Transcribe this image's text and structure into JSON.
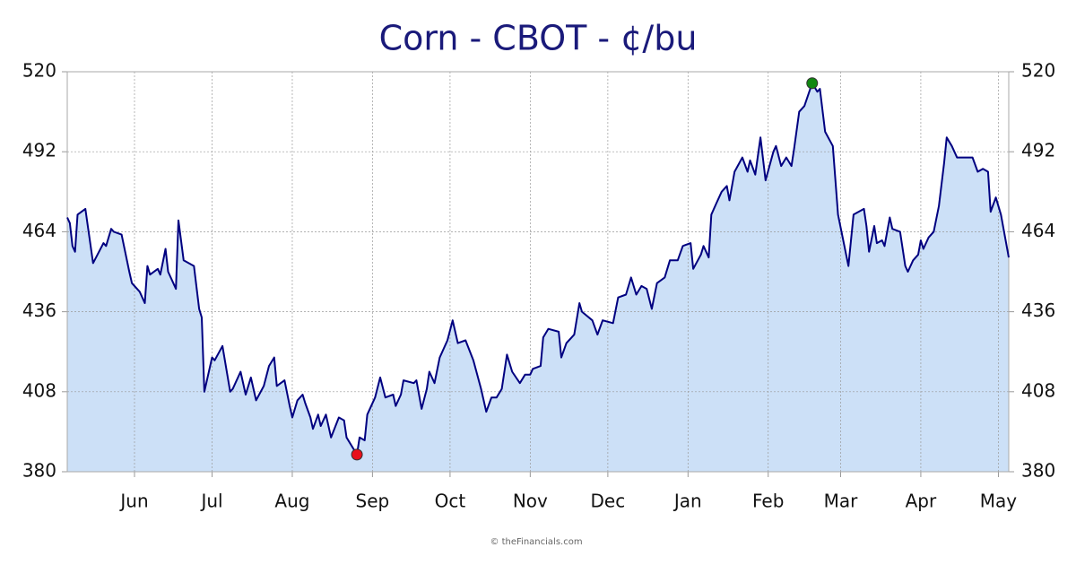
{
  "chart_data": {
    "type": "area",
    "title": "Corn - CBOT - ¢/bu",
    "footer": "© theFinancials.com",
    "x": [
      0,
      1,
      2,
      3,
      4,
      7,
      10,
      14,
      15,
      17,
      18,
      21,
      24,
      25,
      28,
      30,
      31,
      32,
      35,
      36,
      38,
      39,
      42,
      43,
      45,
      49,
      51,
      52,
      53,
      56,
      57,
      60,
      63,
      64,
      67,
      69,
      71,
      73,
      76,
      78,
      80,
      81,
      84,
      86,
      87,
      89,
      91,
      92,
      94,
      95,
      97,
      98,
      100,
      102,
      105,
      107,
      108,
      112,
      113,
      115,
      116,
      119,
      121,
      123,
      126,
      127,
      129,
      130,
      134,
      135,
      137,
      139,
      140,
      142,
      144,
      147,
      149,
      151,
      154,
      157,
      160,
      162,
      164,
      166,
      168,
      170,
      172,
      175,
      177,
      179,
      180,
      183,
      184,
      186,
      190,
      191,
      193,
      196,
      198,
      199,
      203,
      205,
      207,
      211,
      213,
      216,
      218,
      220,
      222,
      224,
      226,
      228,
      231,
      233,
      236,
      238,
      241,
      242,
      245,
      246,
      248,
      249,
      251,
      253,
      255,
      256,
      258,
      261,
      263,
      264,
      266,
      268,
      270,
      273,
      274,
      276,
      278,
      280,
      281,
      283,
      285,
      288,
      290,
      291,
      293,
      296,
      298,
      302,
      304,
      308,
      309,
      310,
      312,
      313,
      315,
      316,
      318,
      319,
      322,
      324,
      325,
      327,
      329,
      330,
      331,
      333,
      335,
      337,
      339,
      340,
      342,
      344,
      346,
      350,
      352,
      354,
      356,
      357,
      359,
      361,
      364
    ],
    "values": [
      469,
      467,
      459,
      457,
      470,
      472,
      453,
      460,
      459,
      465,
      464,
      463,
      450,
      446,
      443,
      439,
      452,
      449,
      451,
      449,
      458,
      450,
      444,
      468,
      454,
      452,
      437,
      434,
      408,
      420,
      419,
      424,
      408,
      409,
      415,
      407,
      413,
      405,
      410,
      417,
      420,
      410,
      412,
      403,
      399,
      405,
      407,
      404,
      399,
      395,
      400,
      396,
      400,
      392,
      399,
      398,
      392,
      386,
      392,
      391,
      400,
      406,
      413,
      406,
      407,
      403,
      407,
      412,
      411,
      412,
      402,
      409,
      415,
      411,
      420,
      426,
      433,
      425,
      426,
      419,
      409,
      401,
      406,
      406,
      409,
      421,
      415,
      411,
      414,
      414,
      416,
      417,
      427,
      430,
      429,
      420,
      425,
      428,
      439,
      436,
      433,
      428,
      433,
      432,
      441,
      442,
      448,
      442,
      445,
      444,
      437,
      446,
      448,
      454,
      454,
      459,
      460,
      451,
      456,
      459,
      455,
      470,
      474,
      478,
      480,
      475,
      485,
      490,
      485,
      489,
      484,
      497,
      482,
      492,
      494,
      487,
      490,
      487,
      493,
      506,
      508,
      516,
      513,
      514,
      499,
      494,
      470,
      452,
      470,
      472,
      466,
      457,
      466,
      460,
      461,
      459,
      469,
      465,
      464,
      452,
      450,
      454,
      456,
      461,
      458,
      462,
      464,
      473,
      488,
      497,
      494,
      490,
      490,
      490,
      485,
      486,
      485,
      471,
      476,
      470,
      455
    ],
    "color": "#000080",
    "fill": "#cce0f7",
    "highlights": [
      {
        "x": 112,
        "value": 386,
        "color": "#e8101a"
      },
      {
        "x": 288,
        "value": 516,
        "color": "#118811"
      }
    ],
    "xlim": [
      0,
      364
    ],
    "xticks": [
      {
        "value": 26,
        "label": "Jun"
      },
      {
        "value": 56,
        "label": "Jul"
      },
      {
        "value": 87,
        "label": "Aug"
      },
      {
        "value": 118,
        "label": "Sep"
      },
      {
        "value": 148,
        "label": "Oct"
      },
      {
        "value": 179,
        "label": "Nov"
      },
      {
        "value": 209,
        "label": "Dec"
      },
      {
        "value": 240,
        "label": "Jan"
      },
      {
        "value": 271,
        "label": "Feb"
      },
      {
        "value": 299,
        "label": "Mar"
      },
      {
        "value": 330,
        "label": "Apr"
      },
      {
        "value": 360,
        "label": "May"
      }
    ],
    "ylim": [
      380,
      520
    ],
    "yticks": [
      380,
      408,
      436,
      464,
      492,
      520
    ],
    "y2lim": [
      380,
      520
    ],
    "y2ticks": [
      380,
      408,
      436,
      464,
      492,
      520
    ],
    "grid": true
  }
}
